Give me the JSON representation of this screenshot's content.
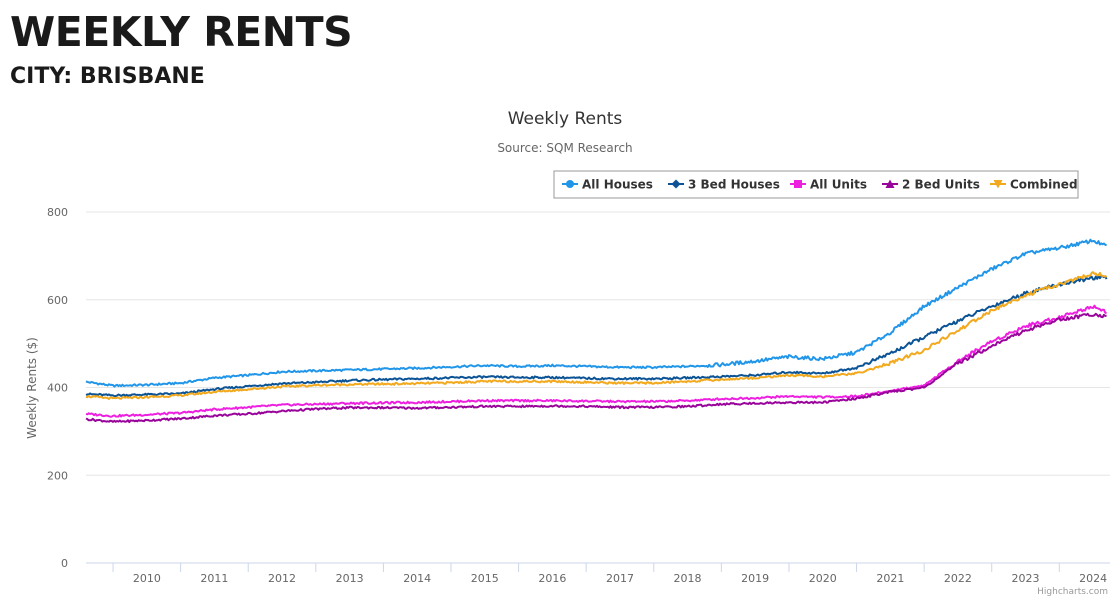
{
  "page": {
    "heading": "WEEKLY RENTS",
    "city_label": "CITY: BRISBANE"
  },
  "credits": "Highcharts.com",
  "colors": {
    "all_houses": "#2196e8",
    "three_bed_houses": "#0b5394",
    "all_units": "#ee20e0",
    "two_bed_units": "#99049b",
    "combined": "#f2a91e"
  },
  "chart_data": {
    "type": "line",
    "title": "Weekly Rents",
    "subtitle": "Source: SQM Research",
    "xlabel": "",
    "ylabel": "Weekly Rents ($)",
    "ylim": [
      0,
      800
    ],
    "yticks": [
      0,
      200,
      400,
      600,
      800
    ],
    "xlim": [
      2009.6,
      2024.75
    ],
    "xticks": [
      "2010",
      "2011",
      "2012",
      "2013",
      "2014",
      "2015",
      "2016",
      "2017",
      "2018",
      "2019",
      "2020",
      "2021",
      "2022",
      "2023",
      "2024"
    ],
    "grid": true,
    "legend_position": "top-right",
    "x": [
      2009.6,
      2010.0,
      2010.5,
      2011.0,
      2011.5,
      2012.0,
      2012.5,
      2013.0,
      2013.5,
      2014.0,
      2014.5,
      2015.0,
      2015.5,
      2016.0,
      2016.5,
      2017.0,
      2017.5,
      2018.0,
      2018.5,
      2019.0,
      2019.5,
      2020.0,
      2020.5,
      2021.0,
      2021.5,
      2022.0,
      2022.5,
      2023.0,
      2023.5,
      2024.0,
      2024.5,
      2024.7
    ],
    "series": [
      {
        "name": "All Houses",
        "marker": "circle",
        "color": "#2196e8",
        "values": [
          413,
          404,
          406,
          410,
          422,
          428,
          436,
          438,
          440,
          442,
          444,
          447,
          450,
          448,
          450,
          448,
          446,
          446,
          448,
          452,
          460,
          470,
          465,
          480,
          525,
          585,
          628,
          670,
          705,
          718,
          735,
          722
        ]
      },
      {
        "name": "3 Bed Houses",
        "marker": "diamond",
        "color": "#0b5394",
        "values": [
          385,
          382,
          384,
          386,
          396,
          403,
          409,
          412,
          416,
          418,
          420,
          422,
          424,
          423,
          423,
          421,
          420,
          420,
          422,
          425,
          428,
          435,
          432,
          445,
          478,
          515,
          552,
          585,
          615,
          635,
          650,
          650
        ]
      },
      {
        "name": "All Units",
        "marker": "square",
        "color": "#ee20e0",
        "values": [
          340,
          335,
          338,
          342,
          350,
          355,
          360,
          362,
          364,
          365,
          366,
          368,
          370,
          370,
          370,
          369,
          368,
          368,
          370,
          374,
          376,
          380,
          378,
          380,
          392,
          405,
          460,
          505,
          540,
          560,
          585,
          573
        ]
      },
      {
        "name": "2 Bed Units",
        "marker": "triangle",
        "color": "#99049b",
        "values": [
          328,
          322,
          325,
          329,
          336,
          340,
          346,
          351,
          354,
          354,
          353,
          355,
          357,
          357,
          358,
          357,
          355,
          355,
          357,
          362,
          364,
          366,
          366,
          375,
          390,
          400,
          455,
          495,
          530,
          555,
          567,
          563
        ]
      },
      {
        "name": "Combined",
        "marker": "triangle-down",
        "color": "#f2a91e",
        "values": [
          380,
          375,
          378,
          382,
          390,
          396,
          402,
          405,
          407,
          408,
          409,
          411,
          414,
          414,
          414,
          412,
          410,
          410,
          414,
          418,
          422,
          428,
          425,
          432,
          455,
          485,
          530,
          575,
          610,
          635,
          660,
          655
        ]
      }
    ]
  }
}
